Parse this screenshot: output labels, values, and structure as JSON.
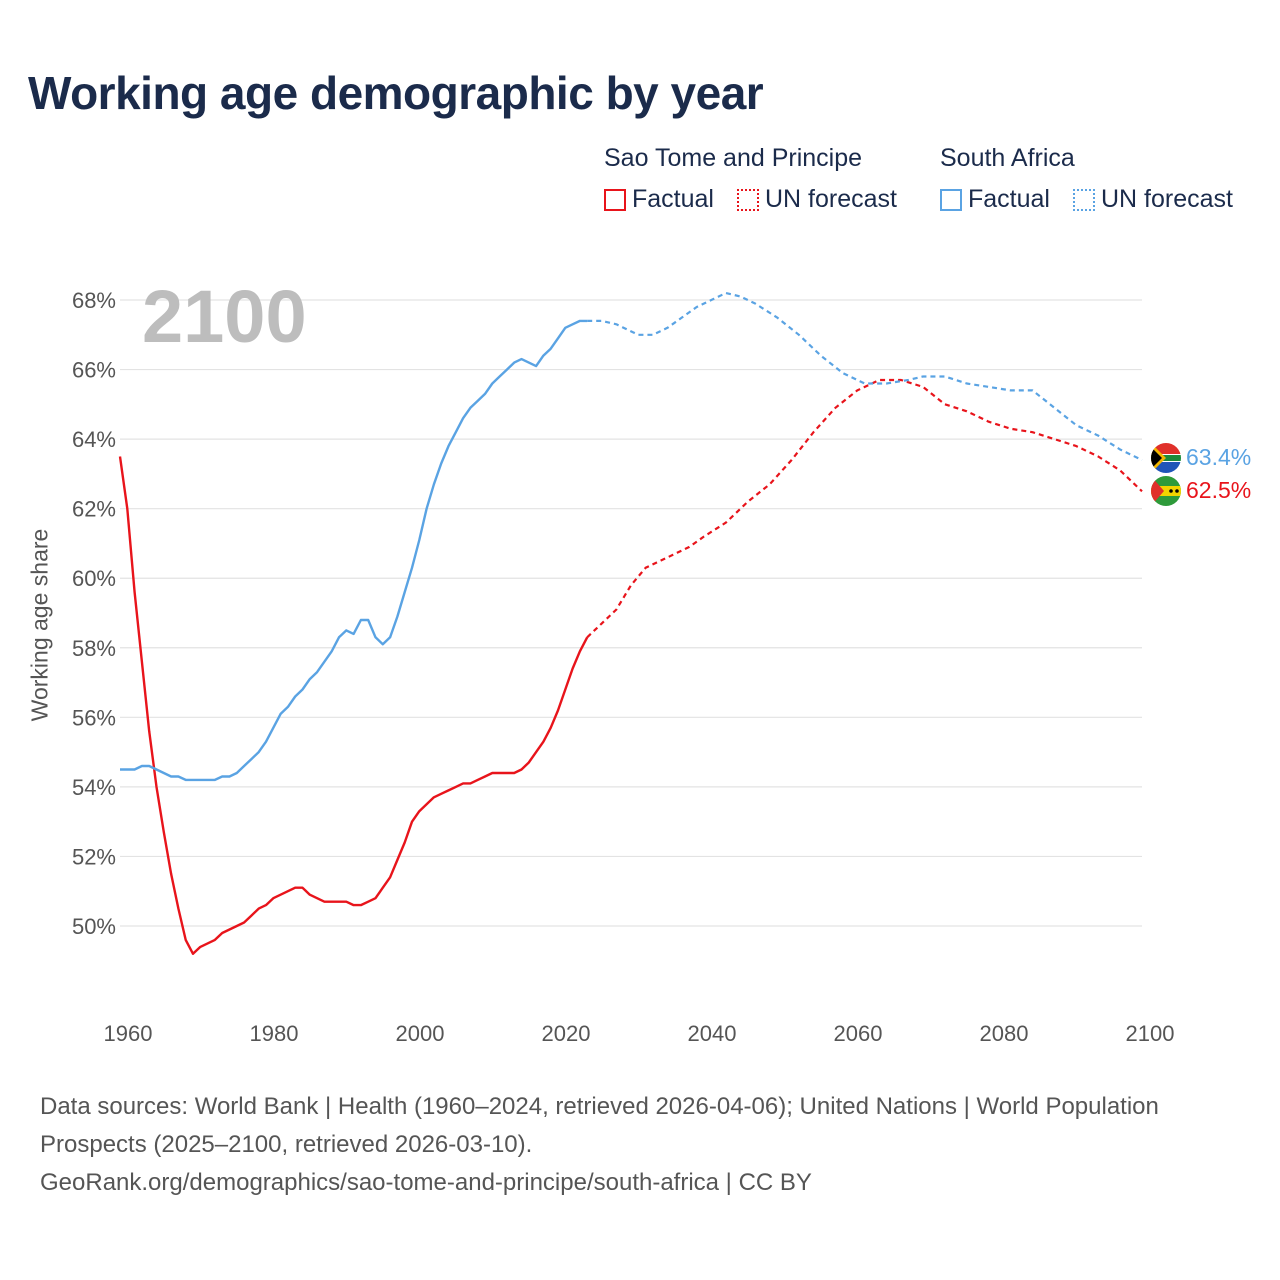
{
  "title": "Working age demographic by year",
  "legend": {
    "groups": [
      {
        "name": "Sao Tome and Principe",
        "color": "#e8141b",
        "factual_label": "Factual",
        "forecast_label": "UN forecast"
      },
      {
        "name": "South Africa",
        "color": "#5aa3e3",
        "factual_label": "Factual",
        "forecast_label": "UN forecast"
      }
    ]
  },
  "year_watermark": "2100",
  "end_labels": {
    "stp": "62.5%",
    "za": "63.4%"
  },
  "colors": {
    "stp": "#e8141b",
    "za": "#5aa3e3",
    "title": "#1b2b4b",
    "grid": "#e3e3e3"
  },
  "icons": {
    "stp": "flag-sao-tome-and-principe-icon",
    "za": "flag-south-africa-icon"
  },
  "footer": {
    "line1": "Data sources: World Bank | Health (1960–2024, retrieved 2026-04-06); United Nations | World Population Prospects (2025–2100, retrieved 2026-03-10).",
    "line2": "GeoRank.org/demographics/sao-tome-and-principe/south-africa | CC BY"
  },
  "chart_data": {
    "type": "line",
    "title": "Working age demographic by year",
    "xlabel": "",
    "ylabel": "Working age share",
    "xlim": [
      1960,
      2100
    ],
    "ylim": [
      48,
      69
    ],
    "x_ticks": [
      1960,
      1980,
      2000,
      2020,
      2040,
      2060,
      2080,
      2100
    ],
    "y_ticks": [
      50,
      52,
      54,
      56,
      58,
      60,
      62,
      64,
      66,
      68
    ],
    "y_tick_labels": [
      "50%",
      "52%",
      "54%",
      "56%",
      "58%",
      "60%",
      "62%",
      "64%",
      "66%",
      "68%"
    ],
    "factual_end_year": 2024,
    "series": [
      {
        "name": "Sao Tome and Principe",
        "key": "stp",
        "points": [
          [
            1960,
            63.5
          ],
          [
            1961,
            62.0
          ],
          [
            1962,
            59.6
          ],
          [
            1963,
            57.6
          ],
          [
            1964,
            55.6
          ],
          [
            1965,
            54.0
          ],
          [
            1966,
            52.7
          ],
          [
            1967,
            51.5
          ],
          [
            1968,
            50.5
          ],
          [
            1969,
            49.6
          ],
          [
            1970,
            49.2
          ],
          [
            1971,
            49.4
          ],
          [
            1972,
            49.5
          ],
          [
            1973,
            49.6
          ],
          [
            1974,
            49.8
          ],
          [
            1975,
            49.9
          ],
          [
            1976,
            50.0
          ],
          [
            1977,
            50.1
          ],
          [
            1978,
            50.3
          ],
          [
            1979,
            50.5
          ],
          [
            1980,
            50.6
          ],
          [
            1981,
            50.8
          ],
          [
            1982,
            50.9
          ],
          [
            1983,
            51.0
          ],
          [
            1984,
            51.1
          ],
          [
            1985,
            51.1
          ],
          [
            1986,
            50.9
          ],
          [
            1987,
            50.8
          ],
          [
            1988,
            50.7
          ],
          [
            1989,
            50.7
          ],
          [
            1990,
            50.7
          ],
          [
            1991,
            50.7
          ],
          [
            1992,
            50.6
          ],
          [
            1993,
            50.6
          ],
          [
            1994,
            50.7
          ],
          [
            1995,
            50.8
          ],
          [
            1996,
            51.1
          ],
          [
            1997,
            51.4
          ],
          [
            1998,
            51.9
          ],
          [
            1999,
            52.4
          ],
          [
            2000,
            53.0
          ],
          [
            2001,
            53.3
          ],
          [
            2002,
            53.5
          ],
          [
            2003,
            53.7
          ],
          [
            2004,
            53.8
          ],
          [
            2005,
            53.9
          ],
          [
            2006,
            54.0
          ],
          [
            2007,
            54.1
          ],
          [
            2008,
            54.1
          ],
          [
            2009,
            54.2
          ],
          [
            2010,
            54.3
          ],
          [
            2011,
            54.4
          ],
          [
            2012,
            54.4
          ],
          [
            2013,
            54.4
          ],
          [
            2014,
            54.4
          ],
          [
            2015,
            54.5
          ],
          [
            2016,
            54.7
          ],
          [
            2017,
            55.0
          ],
          [
            2018,
            55.3
          ],
          [
            2019,
            55.7
          ],
          [
            2020,
            56.2
          ],
          [
            2021,
            56.8
          ],
          [
            2022,
            57.4
          ],
          [
            2023,
            57.9
          ],
          [
            2024,
            58.3
          ],
          [
            2026,
            58.7
          ],
          [
            2028,
            59.1
          ],
          [
            2030,
            59.8
          ],
          [
            2032,
            60.3
          ],
          [
            2035,
            60.6
          ],
          [
            2038,
            60.9
          ],
          [
            2040,
            61.2
          ],
          [
            2043,
            61.6
          ],
          [
            2046,
            62.2
          ],
          [
            2049,
            62.7
          ],
          [
            2052,
            63.4
          ],
          [
            2055,
            64.2
          ],
          [
            2058,
            64.9
          ],
          [
            2061,
            65.4
          ],
          [
            2064,
            65.7
          ],
          [
            2067,
            65.7
          ],
          [
            2070,
            65.5
          ],
          [
            2073,
            65.0
          ],
          [
            2076,
            64.8
          ],
          [
            2079,
            64.5
          ],
          [
            2082,
            64.3
          ],
          [
            2085,
            64.2
          ],
          [
            2088,
            64.0
          ],
          [
            2091,
            63.8
          ],
          [
            2094,
            63.5
          ],
          [
            2097,
            63.1
          ],
          [
            2099,
            62.7
          ],
          [
            2100,
            62.5
          ]
        ]
      },
      {
        "name": "South Africa",
        "key": "za",
        "points": [
          [
            1960,
            54.5
          ],
          [
            1961,
            54.5
          ],
          [
            1962,
            54.5
          ],
          [
            1963,
            54.6
          ],
          [
            1964,
            54.6
          ],
          [
            1965,
            54.5
          ],
          [
            1966,
            54.4
          ],
          [
            1967,
            54.3
          ],
          [
            1968,
            54.3
          ],
          [
            1969,
            54.2
          ],
          [
            1970,
            54.2
          ],
          [
            1971,
            54.2
          ],
          [
            1972,
            54.2
          ],
          [
            1973,
            54.2
          ],
          [
            1974,
            54.3
          ],
          [
            1975,
            54.3
          ],
          [
            1976,
            54.4
          ],
          [
            1977,
            54.6
          ],
          [
            1978,
            54.8
          ],
          [
            1979,
            55.0
          ],
          [
            1980,
            55.3
          ],
          [
            1981,
            55.7
          ],
          [
            1982,
            56.1
          ],
          [
            1983,
            56.3
          ],
          [
            1984,
            56.6
          ],
          [
            1985,
            56.8
          ],
          [
            1986,
            57.1
          ],
          [
            1987,
            57.3
          ],
          [
            1988,
            57.6
          ],
          [
            1989,
            57.9
          ],
          [
            1990,
            58.3
          ],
          [
            1991,
            58.5
          ],
          [
            1992,
            58.4
          ],
          [
            1993,
            58.8
          ],
          [
            1994,
            58.8
          ],
          [
            1995,
            58.3
          ],
          [
            1996,
            58.1
          ],
          [
            1997,
            58.3
          ],
          [
            1998,
            58.9
          ],
          [
            1999,
            59.6
          ],
          [
            2000,
            60.3
          ],
          [
            2001,
            61.1
          ],
          [
            2002,
            62.0
          ],
          [
            2003,
            62.7
          ],
          [
            2004,
            63.3
          ],
          [
            2005,
            63.8
          ],
          [
            2006,
            64.2
          ],
          [
            2007,
            64.6
          ],
          [
            2008,
            64.9
          ],
          [
            2009,
            65.1
          ],
          [
            2010,
            65.3
          ],
          [
            2011,
            65.6
          ],
          [
            2012,
            65.8
          ],
          [
            2013,
            66.0
          ],
          [
            2014,
            66.2
          ],
          [
            2015,
            66.3
          ],
          [
            2016,
            66.2
          ],
          [
            2017,
            66.1
          ],
          [
            2018,
            66.4
          ],
          [
            2019,
            66.6
          ],
          [
            2020,
            66.9
          ],
          [
            2021,
            67.2
          ],
          [
            2022,
            67.3
          ],
          [
            2023,
            67.4
          ],
          [
            2024,
            67.4
          ],
          [
            2026,
            67.4
          ],
          [
            2028,
            67.3
          ],
          [
            2031,
            67.0
          ],
          [
            2033,
            67.0
          ],
          [
            2035,
            67.2
          ],
          [
            2037,
            67.5
          ],
          [
            2039,
            67.8
          ],
          [
            2041,
            68.0
          ],
          [
            2043,
            68.2
          ],
          [
            2045,
            68.1
          ],
          [
            2047,
            67.9
          ],
          [
            2050,
            67.5
          ],
          [
            2053,
            67.0
          ],
          [
            2056,
            66.4
          ],
          [
            2059,
            65.9
          ],
          [
            2062,
            65.6
          ],
          [
            2065,
            65.6
          ],
          [
            2068,
            65.7
          ],
          [
            2070,
            65.8
          ],
          [
            2073,
            65.8
          ],
          [
            2076,
            65.6
          ],
          [
            2079,
            65.5
          ],
          [
            2082,
            65.4
          ],
          [
            2085,
            65.4
          ],
          [
            2088,
            64.9
          ],
          [
            2091,
            64.4
          ],
          [
            2094,
            64.1
          ],
          [
            2097,
            63.7
          ],
          [
            2100,
            63.4
          ]
        ]
      }
    ]
  }
}
